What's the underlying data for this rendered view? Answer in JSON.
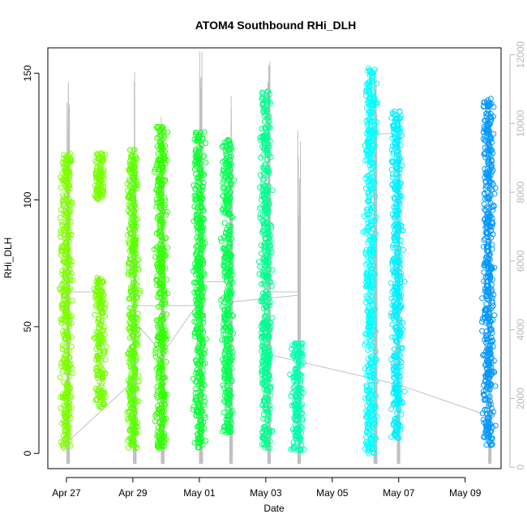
{
  "chart_data": {
    "type": "scatter",
    "title": "ATOM4 Southbound RHi_DLH",
    "xlabel": "Date",
    "ylabel": "RHi_DLH",
    "x_tick_labels": [
      "Apr 27",
      "Apr 29",
      "May 01",
      "May 03",
      "May 05",
      "May 07",
      "May 09"
    ],
    "x_ticks_day": [
      0,
      2,
      4,
      6,
      8,
      10,
      12
    ],
    "xlim_day": [
      -0.56,
      13.08
    ],
    "ylim": [
      -6,
      160
    ],
    "y_ticks": [
      0,
      50,
      100,
      150
    ],
    "y_tick_labels": [
      "0",
      "50",
      "100",
      "150"
    ],
    "y2_label": "",
    "y2lim": [
      -40,
      12200
    ],
    "y2_ticks": [
      0,
      2000,
      4000,
      6000,
      8000,
      10000,
      12000
    ],
    "y2_tick_labels": [
      "0",
      "2000",
      "4000",
      "6000",
      "8000",
      "10000",
      "12000"
    ],
    "grid": false,
    "marker": "open-circle",
    "flights": [
      {
        "day": 0.0,
        "y_min": 2,
        "y_max": 119,
        "color": "#7fff00"
      },
      {
        "day": 1.0,
        "y_min": 18,
        "y_max": 70,
        "color": "#77ff00"
      },
      {
        "day": 1.0,
        "y_min": 100,
        "y_max": 119,
        "color": "#77ff00"
      },
      {
        "day": 2.0,
        "y_min": 2,
        "y_max": 120,
        "color": "#5cff00"
      },
      {
        "day": 2.85,
        "y_min": 2,
        "y_max": 130,
        "color": "#33ff00"
      },
      {
        "day": 4.0,
        "y_min": 2,
        "y_max": 127,
        "color": "#0aff33"
      },
      {
        "day": 4.85,
        "y_min": 8,
        "y_max": 124,
        "color": "#00ff50"
      },
      {
        "day": 6.0,
        "y_min": 2,
        "y_max": 143,
        "color": "#00ff90"
      },
      {
        "day": 6.95,
        "y_min": 1,
        "y_max": 44,
        "color": "#00ffb0"
      },
      {
        "day": 9.15,
        "y_min": 0,
        "y_max": 152,
        "color": "#00ffff"
      },
      {
        "day": 9.95,
        "y_min": 5,
        "y_max": 135,
        "color": "#00f0ff"
      },
      {
        "day": 12.7,
        "y_min": 3,
        "y_max": 140,
        "color": "#0099ff"
      }
    ],
    "altitude_track": {
      "color": "#c0c0c0",
      "spikes": [
        {
          "day": 0.05,
          "alt_max": 11200
        },
        {
          "day": 2.05,
          "alt_max": 11500
        },
        {
          "day": 2.9,
          "alt_max": 10200
        },
        {
          "day": 4.05,
          "alt_max": 12100
        },
        {
          "day": 4.95,
          "alt_max": 10800
        },
        {
          "day": 6.1,
          "alt_max": 11800
        },
        {
          "day": 7.0,
          "alt_max": 9800
        },
        {
          "day": 9.3,
          "alt_max": 11600
        },
        {
          "day": 10.0,
          "alt_max": 10200
        },
        {
          "day": 12.75,
          "alt_max": 10400
        }
      ],
      "connectors": [
        {
          "x1": 0.0,
          "alt1": 700,
          "x2": 2.0,
          "alt2": 2500
        },
        {
          "x1": 0.0,
          "alt1": 5100,
          "x2": 1.0,
          "alt2": 5100
        },
        {
          "x1": 2.0,
          "alt1": 4700,
          "x2": 4.0,
          "alt2": 4700
        },
        {
          "x1": 2.0,
          "alt1": 4300,
          "x2": 2.9,
          "alt2": 3300
        },
        {
          "x1": 2.9,
          "alt1": 3300,
          "x2": 4.05,
          "alt2": 4900
        },
        {
          "x1": 4.05,
          "alt1": 5400,
          "x2": 4.9,
          "alt2": 5400
        },
        {
          "x1": 6.0,
          "alt1": 5100,
          "x2": 6.95,
          "alt2": 5100
        },
        {
          "x1": 4.9,
          "alt1": 4800,
          "x2": 6.95,
          "alt2": 5000
        },
        {
          "x1": 6.0,
          "alt1": 3300,
          "x2": 10.0,
          "alt2": 2400
        },
        {
          "x1": 10.0,
          "alt1": 2400,
          "x2": 12.7,
          "alt2": 1500
        },
        {
          "x1": 9.3,
          "alt1": 9700,
          "x2": 10.0,
          "alt2": 9700
        }
      ]
    }
  }
}
